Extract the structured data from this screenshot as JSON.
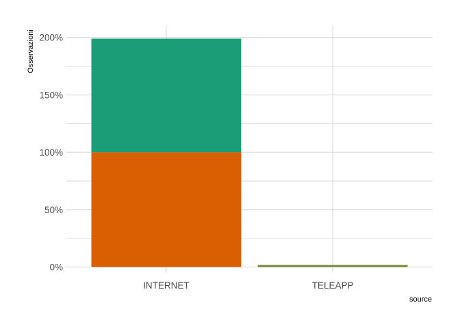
{
  "chart_data": {
    "type": "bar",
    "stacked": true,
    "categories": [
      "INTERNET",
      "TELEAPP"
    ],
    "series": [
      {
        "values": [
          100,
          1
        ],
        "color": "#d95f02"
      },
      {
        "values": [
          99,
          0
        ],
        "color": "#1b9e77"
      }
    ],
    "bar_outline_color": "#7a8a3a",
    "xlabel": "source",
    "ylabel": "Osservazioni",
    "ylim": [
      -5,
      210
    ],
    "yticks": [
      0,
      50,
      100,
      150,
      200
    ],
    "ytick_labels": [
      "0%",
      "50%",
      "100%",
      "150%",
      "200%"
    ],
    "y_minor_ticks": [
      25,
      75,
      125,
      175
    ],
    "grid": true,
    "legend": "none"
  }
}
